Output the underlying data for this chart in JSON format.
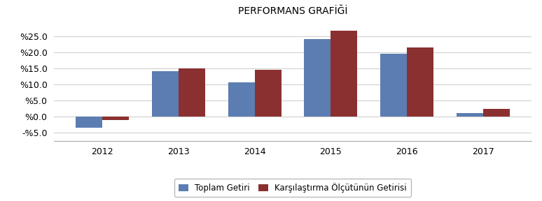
{
  "title": "PERFORMANS GRAFİĞİ",
  "categories": [
    "2012",
    "2013",
    "2014",
    "2015",
    "2016",
    "2017"
  ],
  "toplam_getiri": [
    -3.5,
    14.1,
    10.6,
    24.2,
    19.6,
    1.2
  ],
  "karsilastirma_getiri": [
    -1.0,
    15.0,
    14.6,
    26.8,
    21.5,
    2.4
  ],
  "bar_color_blue": "#5b7db1",
  "bar_color_red": "#8b3030",
  "legend_labels": [
    "Toplam Getiri",
    "Karşılaştırma Ölçütünün Getirisi"
  ],
  "ylim": [
    -7.5,
    30.0
  ],
  "yticks": [
    -5.0,
    0.0,
    5.0,
    10.0,
    15.0,
    20.0,
    25.0
  ],
  "background_color": "#ffffff",
  "grid_color": "#d0d0d0",
  "bar_width": 0.35,
  "title_fontsize": 10
}
